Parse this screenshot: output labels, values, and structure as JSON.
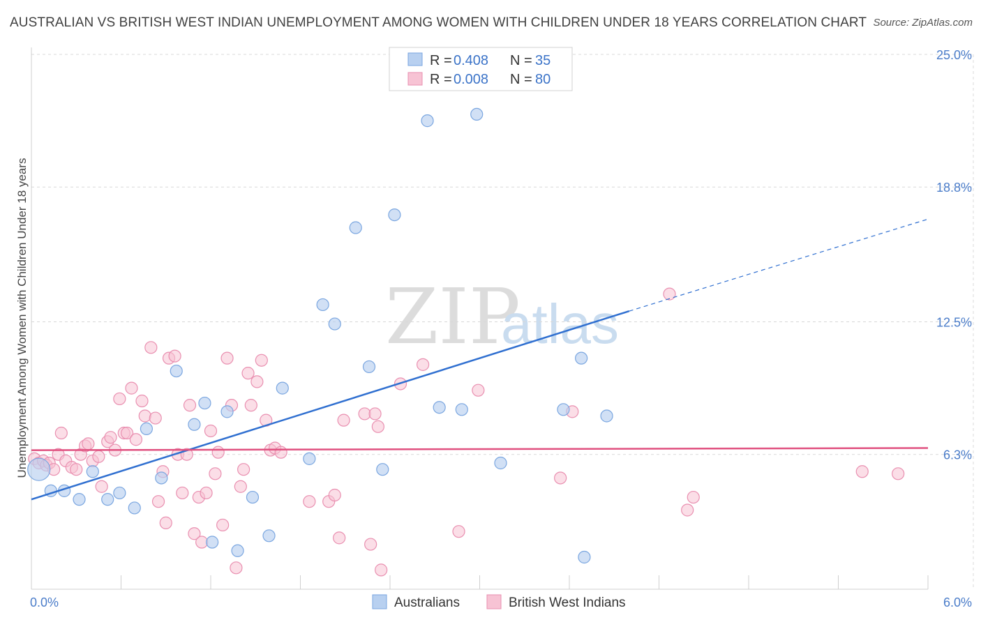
{
  "title": "AUSTRALIAN VS BRITISH WEST INDIAN UNEMPLOYMENT AMONG WOMEN WITH CHILDREN UNDER 18 YEARS CORRELATION CHART",
  "source": "Source: ZipAtlas.com",
  "watermark": {
    "zip": "ZIP",
    "atlas": "atlas"
  },
  "colors": {
    "australians_fill": "#b8d0f0",
    "australians_stroke": "#7aa6e0",
    "australians_line": "#2f6fd0",
    "bwi_fill": "#f7c3d4",
    "bwi_stroke": "#e98fb0",
    "bwi_line": "#e0507f",
    "grid": "#d8d8d8",
    "tick_label": "#4a7cc9"
  },
  "legend": {
    "rows": [
      {
        "r_label": "R = ",
        "r_value": "0.408",
        "n_label": "N = ",
        "n_value": "35"
      },
      {
        "r_label": "R = ",
        "r_value": "0.008",
        "n_label": "N = ",
        "n_value": "80"
      }
    ]
  },
  "chart_data": {
    "type": "scatter",
    "title": "AUSTRALIAN VS BRITISH WEST INDIAN UNEMPLOYMENT AMONG WOMEN WITH CHILDREN UNDER 18 YEARS CORRELATION CHART",
    "xlabel": "",
    "ylabel": "Unemployment Among Women with Children Under 18 years",
    "xlim": [
      0,
      6
    ],
    "ylim": [
      0,
      25
    ],
    "x_tick_labels": [
      "0.0%",
      "6.0%"
    ],
    "y_ticks": [
      6.3,
      12.5,
      18.8,
      25.0
    ],
    "y_tick_labels": [
      "6.3%",
      "12.5%",
      "18.8%",
      "25.0%"
    ],
    "grid": true,
    "legend_position": "top-center",
    "series": [
      {
        "name": "Australians",
        "r": 0.408,
        "n": 35,
        "trend": {
          "x0": 0.0,
          "y0": 4.2,
          "x1": 4.0,
          "y1": 13.0,
          "dashed_to_x": 6.0,
          "dashed_to_y": 17.3
        },
        "points": [
          [
            0.05,
            5.6
          ],
          [
            0.13,
            4.6
          ],
          [
            0.22,
            4.6
          ],
          [
            0.32,
            4.2
          ],
          [
            0.41,
            5.5
          ],
          [
            0.51,
            4.2
          ],
          [
            0.59,
            4.5
          ],
          [
            0.69,
            3.8
          ],
          [
            0.77,
            7.5
          ],
          [
            0.87,
            5.2
          ],
          [
            0.97,
            10.2
          ],
          [
            1.09,
            7.7
          ],
          [
            1.16,
            8.7
          ],
          [
            1.21,
            2.2
          ],
          [
            1.31,
            8.3
          ],
          [
            1.38,
            1.8
          ],
          [
            1.48,
            4.3
          ],
          [
            1.59,
            2.5
          ],
          [
            1.68,
            9.4
          ],
          [
            1.86,
            6.1
          ],
          [
            1.95,
            13.3
          ],
          [
            2.03,
            12.4
          ],
          [
            2.17,
            16.9
          ],
          [
            2.26,
            10.4
          ],
          [
            2.35,
            5.6
          ],
          [
            2.43,
            17.5
          ],
          [
            2.65,
            21.9
          ],
          [
            2.73,
            8.5
          ],
          [
            2.88,
            8.4
          ],
          [
            2.98,
            22.2
          ],
          [
            3.14,
            5.9
          ],
          [
            3.56,
            8.4
          ],
          [
            3.68,
            10.8
          ],
          [
            3.7,
            1.5
          ],
          [
            3.85,
            8.1
          ]
        ]
      },
      {
        "name": "British West Indians",
        "r": 0.008,
        "n": 80,
        "trend": {
          "x0": 0.0,
          "y0": 6.5,
          "x1": 6.0,
          "y1": 6.6
        },
        "points": [
          [
            0.02,
            6.1
          ],
          [
            0.05,
            5.9
          ],
          [
            0.08,
            6.0
          ],
          [
            0.1,
            5.8
          ],
          [
            0.12,
            5.9
          ],
          [
            0.15,
            5.6
          ],
          [
            0.18,
            6.3
          ],
          [
            0.2,
            7.3
          ],
          [
            0.23,
            6.0
          ],
          [
            0.27,
            5.7
          ],
          [
            0.3,
            5.6
          ],
          [
            0.33,
            6.3
          ],
          [
            0.36,
            6.7
          ],
          [
            0.38,
            6.8
          ],
          [
            0.41,
            6.0
          ],
          [
            0.45,
            6.2
          ],
          [
            0.47,
            4.8
          ],
          [
            0.51,
            6.9
          ],
          [
            0.53,
            7.1
          ],
          [
            0.56,
            6.5
          ],
          [
            0.59,
            8.9
          ],
          [
            0.62,
            7.3
          ],
          [
            0.64,
            7.3
          ],
          [
            0.67,
            9.4
          ],
          [
            0.7,
            7.0
          ],
          [
            0.74,
            8.8
          ],
          [
            0.76,
            8.1
          ],
          [
            0.8,
            11.3
          ],
          [
            0.83,
            8.0
          ],
          [
            0.85,
            4.1
          ],
          [
            0.88,
            5.5
          ],
          [
            0.9,
            3.1
          ],
          [
            0.92,
            10.8
          ],
          [
            0.96,
            10.9
          ],
          [
            0.98,
            6.3
          ],
          [
            1.01,
            4.5
          ],
          [
            1.04,
            6.3
          ],
          [
            1.06,
            8.6
          ],
          [
            1.09,
            2.6
          ],
          [
            1.12,
            4.3
          ],
          [
            1.14,
            2.2
          ],
          [
            1.17,
            4.5
          ],
          [
            1.2,
            7.4
          ],
          [
            1.23,
            5.4
          ],
          [
            1.25,
            6.4
          ],
          [
            1.28,
            3.0
          ],
          [
            1.31,
            10.8
          ],
          [
            1.34,
            8.6
          ],
          [
            1.37,
            1.0
          ],
          [
            1.4,
            4.8
          ],
          [
            1.42,
            5.6
          ],
          [
            1.45,
            10.1
          ],
          [
            1.47,
            8.6
          ],
          [
            1.51,
            9.7
          ],
          [
            1.54,
            10.7
          ],
          [
            1.57,
            7.9
          ],
          [
            1.6,
            6.5
          ],
          [
            1.63,
            6.6
          ],
          [
            1.67,
            6.4
          ],
          [
            1.86,
            4.1
          ],
          [
            1.99,
            4.1
          ],
          [
            2.03,
            4.4
          ],
          [
            2.06,
            2.4
          ],
          [
            2.09,
            7.9
          ],
          [
            2.23,
            8.2
          ],
          [
            2.27,
            2.1
          ],
          [
            2.3,
            8.2
          ],
          [
            2.32,
            7.6
          ],
          [
            2.34,
            0.9
          ],
          [
            2.47,
            9.6
          ],
          [
            2.62,
            10.5
          ],
          [
            2.86,
            2.7
          ],
          [
            2.99,
            9.3
          ],
          [
            3.54,
            5.2
          ],
          [
            3.62,
            8.3
          ],
          [
            4.27,
            13.8
          ],
          [
            4.39,
            3.7
          ],
          [
            4.43,
            4.3
          ],
          [
            5.56,
            5.5
          ],
          [
            5.8,
            5.4
          ]
        ]
      }
    ]
  }
}
